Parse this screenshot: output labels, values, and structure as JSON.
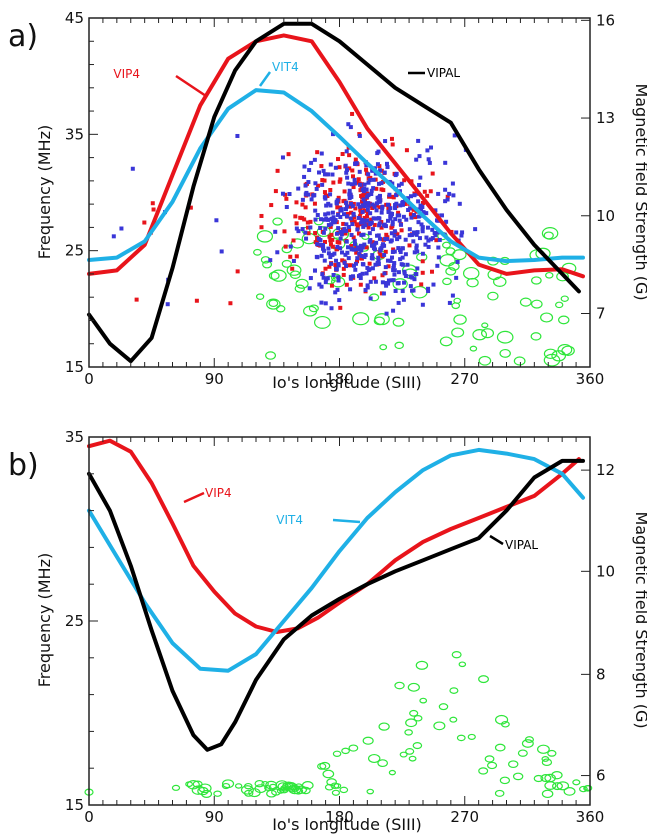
{
  "chart_data": [
    {
      "panel": "a)",
      "type": "line",
      "xlabel": "Io's longitude (SIII)",
      "ylabel": "Frequency (MHz)",
      "y2label": "Magnetic field Strength (G)",
      "xlim": [
        0,
        360
      ],
      "ylim": [
        15,
        45
      ],
      "x_ticks": [
        0,
        90,
        180,
        270,
        360
      ],
      "y_ticks": [
        15,
        25,
        35,
        45
      ],
      "y2_ticks": [
        {
          "label": "7",
          "freq": 19.6
        },
        {
          "label": "10",
          "freq": 28.0
        },
        {
          "label": "13",
          "freq": 36.4
        },
        {
          "label": "16",
          "freq": 44.8
        }
      ],
      "series": [
        {
          "name": "VIP4",
          "color": "#e8141b",
          "x": [
            0,
            20,
            40,
            60,
            80,
            100,
            120,
            140,
            160,
            180,
            200,
            220,
            240,
            260,
            280,
            300,
            320,
            340,
            355
          ],
          "y": [
            23.0,
            23.3,
            25.5,
            31.5,
            37.5,
            41.5,
            43.0,
            43.5,
            43.0,
            39.5,
            35.5,
            32.5,
            29.5,
            26.5,
            23.8,
            23.0,
            23.3,
            23.4,
            22.8
          ]
        },
        {
          "name": "VIT4",
          "color": "#1fb0e6",
          "x": [
            0,
            20,
            40,
            60,
            80,
            100,
            120,
            140,
            160,
            180,
            200,
            220,
            240,
            260,
            280,
            300,
            320,
            340,
            355
          ],
          "y": [
            24.2,
            24.4,
            25.8,
            29.2,
            33.8,
            37.2,
            38.8,
            38.6,
            37.0,
            34.8,
            32.5,
            30.3,
            28.0,
            25.8,
            24.4,
            24.1,
            24.2,
            24.4,
            24.4
          ]
        },
        {
          "name": "VIPAL",
          "color": "#000000",
          "x": [
            0,
            15,
            30,
            45,
            60,
            75,
            90,
            105,
            120,
            140,
            160,
            180,
            200,
            220,
            240,
            260,
            280,
            300,
            320,
            340,
            352
          ],
          "y": [
            19.5,
            17.0,
            15.5,
            17.5,
            23.5,
            30.5,
            36.5,
            40.5,
            43.0,
            44.5,
            44.5,
            43.0,
            41.0,
            39.0,
            37.5,
            36.0,
            32.0,
            28.5,
            25.5,
            23.0,
            21.5
          ]
        }
      ],
      "annotations": [
        "VIP4",
        "VIT4",
        "VIPAL"
      ],
      "scatter_note": "dense cloud of red and blue points plus green circles between ~100° and ~350°, 15–38 MHz"
    },
    {
      "panel": "b)",
      "type": "line",
      "xlabel": "Io's longitude (SIII)",
      "ylabel": "Frequency (MHz)",
      "y2label": "Magnetic field Strength (G)",
      "xlim": [
        0,
        360
      ],
      "ylim": [
        15,
        35
      ],
      "x_ticks": [
        0,
        90,
        180,
        270,
        360
      ],
      "y_ticks": [
        15,
        25,
        35
      ],
      "y2_ticks": [
        {
          "label": "6",
          "freq": 16.6
        },
        {
          "label": "8",
          "freq": 22.1
        },
        {
          "label": "10",
          "freq": 27.7
        },
        {
          "label": "12",
          "freq": 33.2
        }
      ],
      "series": [
        {
          "name": "VIP4",
          "color": "#e8141b",
          "x": [
            0,
            15,
            30,
            45,
            60,
            75,
            90,
            105,
            120,
            135,
            150,
            165,
            180,
            200,
            220,
            240,
            260,
            280,
            300,
            320,
            340,
            352
          ],
          "y": [
            34.5,
            34.8,
            34.2,
            32.5,
            30.3,
            28.0,
            26.6,
            25.4,
            24.7,
            24.4,
            24.6,
            25.2,
            26.0,
            27.0,
            28.3,
            29.3,
            30.0,
            30.6,
            31.2,
            31.8,
            33.0,
            33.8
          ]
        },
        {
          "name": "VIT4",
          "color": "#1fb0e6",
          "x": [
            0,
            20,
            40,
            60,
            80,
            100,
            120,
            140,
            160,
            180,
            200,
            220,
            240,
            260,
            280,
            300,
            320,
            340,
            355
          ],
          "y": [
            31.0,
            28.5,
            26.0,
            23.8,
            22.4,
            22.3,
            23.2,
            25.0,
            26.8,
            28.8,
            30.6,
            32.0,
            33.2,
            34.0,
            34.3,
            34.1,
            33.8,
            33.0,
            31.7
          ]
        },
        {
          "name": "VIPAL",
          "color": "#000000",
          "x": [
            0,
            15,
            30,
            45,
            60,
            75,
            85,
            95,
            105,
            120,
            140,
            160,
            180,
            200,
            220,
            240,
            260,
            280,
            300,
            320,
            340,
            355
          ],
          "y": [
            33.0,
            31.0,
            28.0,
            24.5,
            21.2,
            18.8,
            18.0,
            18.3,
            19.5,
            21.8,
            24.0,
            25.3,
            26.2,
            27.0,
            27.7,
            28.3,
            28.9,
            29.5,
            31.0,
            32.8,
            33.7,
            33.7
          ]
        }
      ],
      "annotations": [
        "VIP4",
        "VIT4",
        "VIPAL"
      ],
      "scatter_note": "green circles between ~0° and ~360°, 15.5–24.5 MHz"
    }
  ]
}
